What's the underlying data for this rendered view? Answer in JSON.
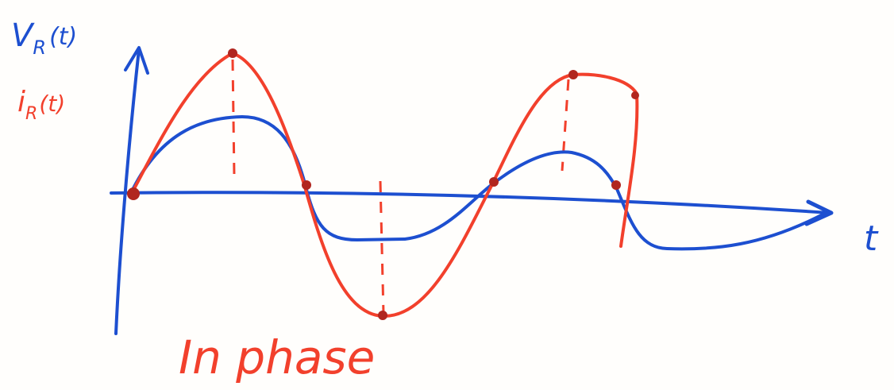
{
  "voltage_label": {
    "symbol": "V",
    "subscript": "R",
    "argument": "(t)"
  },
  "current_label": {
    "symbol": "i",
    "subscript": "R",
    "argument": "(t)"
  },
  "time_axis_label": "t",
  "caption": "In phase"
}
